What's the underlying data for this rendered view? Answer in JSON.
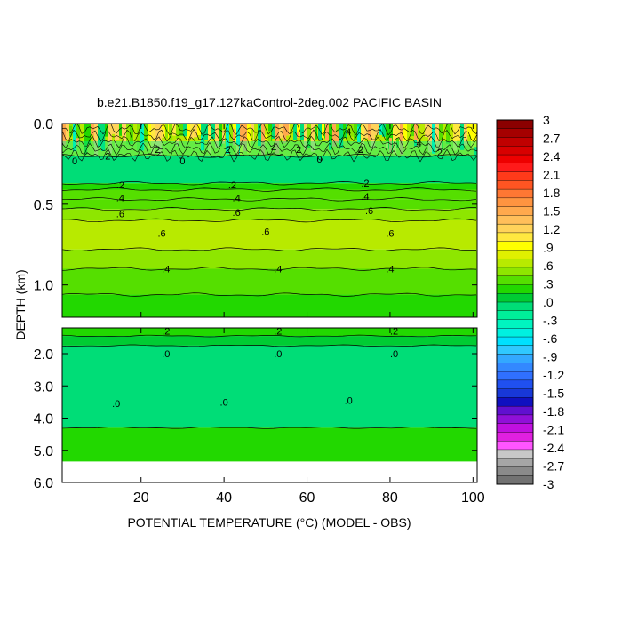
{
  "chart_data": {
    "type": "heatmap",
    "title": "b.e21.B1850.f19_g17.127kaControl-2deg.002 PACIFIC BASIN",
    "xlabel": "POTENTIAL TEMPERATURE (°C) (MODEL - OBS)",
    "ylabel": "DEPTH (km)",
    "xlim": [
      1,
      101
    ],
    "x_ticks": [
      "20",
      "40",
      "60",
      "80",
      "100"
    ],
    "upper_panel": {
      "ylim": [
        0.0,
        1.2
      ],
      "y_ticks": [
        "0.0",
        "0.5",
        "1.0"
      ],
      "bands": [
        {
          "from": 0.0,
          "to": 0.2,
          "value": 0.6,
          "note": "noisy"
        },
        {
          "from": 0.2,
          "to": 0.37,
          "value": 0.0
        },
        {
          "from": 0.37,
          "to": 0.41,
          "value": 0.2
        },
        {
          "from": 0.41,
          "to": 0.47,
          "value": 0.3
        },
        {
          "from": 0.47,
          "to": 0.53,
          "value": 0.4
        },
        {
          "from": 0.53,
          "to": 0.6,
          "value": 0.5
        },
        {
          "from": 0.6,
          "to": 0.78,
          "value": 0.6
        },
        {
          "from": 0.78,
          "to": 0.9,
          "value": 0.5
        },
        {
          "from": 0.9,
          "to": 1.06,
          "value": 0.4
        },
        {
          "from": 1.06,
          "to": 1.2,
          "value": 0.2
        }
      ],
      "contour_labels": [
        {
          "x": 4,
          "y": 0.23,
          "text": "0"
        },
        {
          "x": 12,
          "y": 0.2,
          "text": "2"
        },
        {
          "x": 24,
          "y": 0.16,
          "text": "2"
        },
        {
          "x": 30,
          "y": 0.23,
          "text": "0"
        },
        {
          "x": 41,
          "y": 0.16,
          "text": "2"
        },
        {
          "x": 52,
          "y": 0.15,
          "text": "4"
        },
        {
          "x": 58,
          "y": 0.16,
          "text": "2"
        },
        {
          "x": 63,
          "y": 0.22,
          "text": "0"
        },
        {
          "x": 70,
          "y": 0.05,
          "text": "4"
        },
        {
          "x": 73,
          "y": 0.16,
          "text": "2"
        },
        {
          "x": 87,
          "y": 0.12,
          "text": "4"
        },
        {
          "x": 92,
          "y": 0.18,
          "text": "2"
        },
        {
          "x": 15,
          "y": 0.38,
          "text": ".2"
        },
        {
          "x": 42,
          "y": 0.38,
          "text": ".2"
        },
        {
          "x": 74,
          "y": 0.37,
          "text": ".2"
        },
        {
          "x": 15,
          "y": 0.46,
          "text": ".4"
        },
        {
          "x": 43,
          "y": 0.46,
          "text": ".4"
        },
        {
          "x": 74,
          "y": 0.45,
          "text": ".4"
        },
        {
          "x": 15,
          "y": 0.56,
          "text": ".6"
        },
        {
          "x": 43,
          "y": 0.55,
          "text": ".6"
        },
        {
          "x": 75,
          "y": 0.54,
          "text": ".6"
        },
        {
          "x": 25,
          "y": 0.68,
          "text": ".6"
        },
        {
          "x": 50,
          "y": 0.67,
          "text": ".6"
        },
        {
          "x": 80,
          "y": 0.68,
          "text": ".6"
        },
        {
          "x": 26,
          "y": 0.9,
          "text": ".4"
        },
        {
          "x": 53,
          "y": 0.9,
          "text": ".4"
        },
        {
          "x": 80,
          "y": 0.9,
          "text": ".4"
        }
      ]
    },
    "lower_panel": {
      "ylim": [
        1.2,
        6.0
      ],
      "y_ticks": [
        "2.0",
        "3.0",
        "4.0",
        "5.0",
        "6.0"
      ],
      "no_data_below": 5.35,
      "bands": [
        {
          "from": 1.2,
          "to": 1.45,
          "value": 0.2
        },
        {
          "from": 1.45,
          "to": 1.75,
          "value": 0.1
        },
        {
          "from": 1.75,
          "to": 4.3,
          "value": 0.0
        },
        {
          "from": 4.3,
          "to": 5.35,
          "value": 0.2
        }
      ],
      "contour_labels": [
        {
          "x": 26,
          "y": 1.3,
          "text": ".2"
        },
        {
          "x": 53,
          "y": 1.3,
          "text": ".2"
        },
        {
          "x": 81,
          "y": 1.3,
          "text": ".2"
        },
        {
          "x": 26,
          "y": 2.0,
          "text": ".0"
        },
        {
          "x": 53,
          "y": 2.0,
          "text": ".0"
        },
        {
          "x": 81,
          "y": 2.0,
          "text": ".0"
        },
        {
          "x": 14,
          "y": 3.55,
          "text": ".0"
        },
        {
          "x": 40,
          "y": 3.5,
          "text": ".0"
        },
        {
          "x": 70,
          "y": 3.45,
          "text": ".0"
        }
      ]
    },
    "colorbar": {
      "labels": [
        "3",
        "2.7",
        "2.4",
        "2.1",
        "1.8",
        "1.5",
        "1.2",
        ".9",
        ".6",
        ".3",
        ".0",
        "-.3",
        "-.6",
        "-.9",
        "-1.2",
        "-1.5",
        "-1.8",
        "-2.1",
        "-2.4",
        "-2.7",
        "-3"
      ],
      "colors": [
        "#8b0000",
        "#a50000",
        "#c00000",
        "#d80000",
        "#ee0000",
        "#ff1a1a",
        "#ff3a1a",
        "#ff5522",
        "#ff7733",
        "#ff9440",
        "#ffa94d",
        "#ffbf5a",
        "#ffd35a",
        "#ffe840",
        "#ffff00",
        "#e0f000",
        "#b8ea00",
        "#8ee600",
        "#55df00",
        "#22d800",
        "#00cc33",
        "#00dd77",
        "#00ee99",
        "#00f4c0",
        "#00f0e0",
        "#00e0ff",
        "#30c8ff",
        "#33a8ff",
        "#3388ff",
        "#3070ff",
        "#2050f0",
        "#1838d8",
        "#1010c0",
        "#6010d0",
        "#9010d8",
        "#c010e0",
        "#e020e0",
        "#ff55ff",
        "#c8c8c8",
        "#a6a6a6",
        "#8a8a8a",
        "#727272"
      ]
    }
  }
}
